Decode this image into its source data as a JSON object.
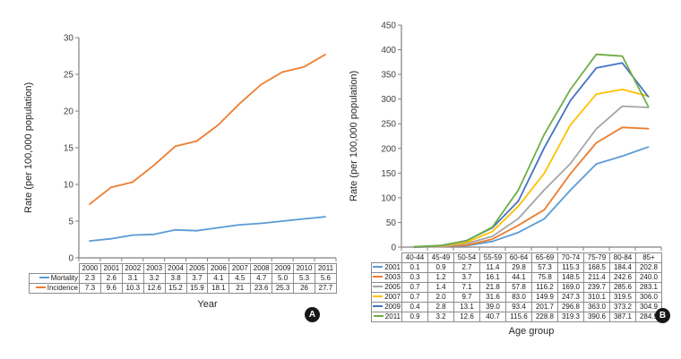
{
  "figure": {
    "background": "#ffffff",
    "axis_color": "#808080",
    "tick_text_color": "#404040",
    "table_border_color": "#8c8c8c"
  },
  "chart_data": [
    {
      "id": "A",
      "type": "line",
      "panel_label": "A",
      "title": "",
      "ylabel": "Rate (per 100,000 population)",
      "xlabel": "Year",
      "ylim": [
        0,
        30
      ],
      "yticks": [
        0,
        5,
        10,
        15,
        20,
        25,
        30
      ],
      "grid": false,
      "legend_position": "table-left",
      "categories": [
        "2000",
        "2001",
        "2002",
        "2003",
        "2004",
        "2005",
        "2006",
        "2007",
        "2008",
        "2009",
        "2010",
        "2011"
      ],
      "series": [
        {
          "name": "Mortality",
          "color": "#5b9bd5",
          "values": [
            "2.3",
            "2.6",
            "3.1",
            "3.2",
            "3.8",
            "3.7",
            "4.1",
            "4.5",
            "4.7",
            "5.0",
            "5.3",
            "5.6"
          ]
        },
        {
          "name": "Incidence",
          "color": "#ed7d31",
          "values": [
            "7.3",
            "9.6",
            "10.3",
            "12.6",
            "15.2",
            "15.9",
            "18.1",
            "21",
            "23.6",
            "25.3",
            "26",
            "27.7"
          ]
        }
      ]
    },
    {
      "id": "B",
      "type": "line",
      "panel_label": "B",
      "title": "",
      "ylabel": "Rate (per 100,000 population)",
      "xlabel": "Age group",
      "ylim": [
        0,
        450
      ],
      "yticks": [
        0,
        50,
        100,
        150,
        200,
        250,
        300,
        350,
        400,
        450
      ],
      "grid": false,
      "legend_position": "table-left",
      "categories": [
        "40-44",
        "45-49",
        "50-54",
        "55-59",
        "60-64",
        "65-69",
        "70-74",
        "75-79",
        "80-84",
        "85+"
      ],
      "series": [
        {
          "name": "2001",
          "color": "#5b9bd5",
          "values": [
            "0.1",
            "0.9",
            "2.7",
            "11.4",
            "29.8",
            "57.3",
            "115.3",
            "168.5",
            "184.4",
            "202.8"
          ]
        },
        {
          "name": "2003",
          "color": "#ed7d31",
          "values": [
            "0.3",
            "1.2",
            "3.7",
            "16.1",
            "44.1",
            "75.8",
            "148.5",
            "211.4",
            "242.6",
            "240.0"
          ]
        },
        {
          "name": "2005",
          "color": "#a5a5a5",
          "values": [
            "0.7",
            "1.4",
            "7.1",
            "21.8",
            "57.8",
            "116.2",
            "169.0",
            "239.7",
            "285.6",
            "283.1"
          ]
        },
        {
          "name": "2007",
          "color": "#ffc000",
          "values": [
            "0.7",
            "2.0",
            "9.7",
            "31.6",
            "83.0",
            "149.9",
            "247.3",
            "310.1",
            "319.5",
            "306.0"
          ]
        },
        {
          "name": "2009",
          "color": "#4472c4",
          "values": [
            "0.4",
            "2.8",
            "13.1",
            "39.0",
            "93.4",
            "201.7",
            "296.8",
            "363.0",
            "373.2",
            "304.9"
          ]
        },
        {
          "name": "2011",
          "color": "#70ad47",
          "values": [
            "0.9",
            "3.2",
            "12.6",
            "40.7",
            "115.6",
            "228.8",
            "319.3",
            "390.6",
            "387.1",
            "284.9"
          ]
        }
      ]
    }
  ]
}
